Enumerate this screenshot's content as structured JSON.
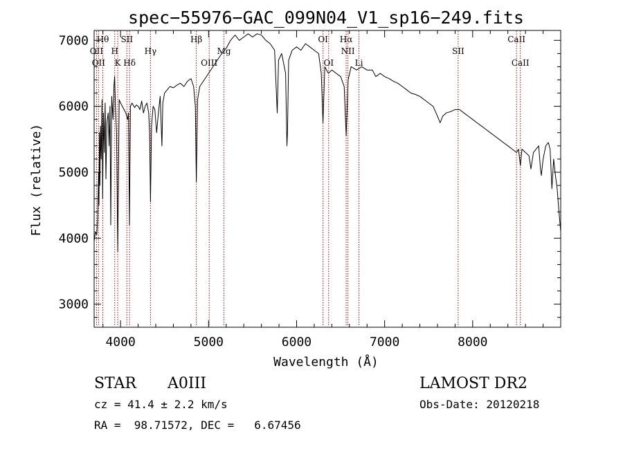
{
  "chart_data": {
    "type": "line",
    "title": "spec−55976−GAC_099N04_V1_sp16−249.fits",
    "xlabel": "Wavelength (Å)",
    "ylabel": "Flux (relative)",
    "xlim": [
      3700,
      9000
    ],
    "ylim": [
      2650,
      7150
    ],
    "xticks": [
      4000,
      5000,
      6000,
      7000,
      8000
    ],
    "yticks": [
      3000,
      4000,
      5000,
      6000,
      7000
    ],
    "grid": false,
    "series": [
      {
        "points": [
          [
            3700,
            3950
          ],
          [
            3715,
            4100
          ],
          [
            3730,
            4050
          ],
          [
            3740,
            4300
          ],
          [
            3750,
            5000
          ],
          [
            3755,
            4500
          ],
          [
            3760,
            5600
          ],
          [
            3765,
            4800
          ],
          [
            3772,
            5700
          ],
          [
            3780,
            5200
          ],
          [
            3790,
            6100
          ],
          [
            3797,
            4600
          ],
          [
            3805,
            5900
          ],
          [
            3815,
            5300
          ],
          [
            3825,
            6050
          ],
          [
            3834,
            4900
          ],
          [
            3845,
            5750
          ],
          [
            3860,
            5900
          ],
          [
            3870,
            5400
          ],
          [
            3880,
            6000
          ],
          [
            3889,
            4200
          ],
          [
            3900,
            6150
          ],
          [
            3915,
            5800
          ],
          [
            3925,
            6300
          ],
          [
            3933,
            6450
          ],
          [
            3942,
            6000
          ],
          [
            3955,
            5600
          ],
          [
            3968,
            3800
          ],
          [
            3985,
            6100
          ],
          [
            4000,
            6050
          ],
          [
            4020,
            6000
          ],
          [
            4040,
            5950
          ],
          [
            4060,
            5900
          ],
          [
            4080,
            5800
          ],
          [
            4090,
            5900
          ],
          [
            4101,
            4200
          ],
          [
            4112,
            6000
          ],
          [
            4130,
            6050
          ],
          [
            4160,
            5980
          ],
          [
            4180,
            6020
          ],
          [
            4200,
            6000
          ],
          [
            4220,
            5950
          ],
          [
            4240,
            6080
          ],
          [
            4260,
            5900
          ],
          [
            4280,
            6000
          ],
          [
            4300,
            6050
          ],
          [
            4320,
            5900
          ],
          [
            4330,
            5600
          ],
          [
            4340,
            4550
          ],
          [
            4352,
            5700
          ],
          [
            4370,
            6000
          ],
          [
            4390,
            5950
          ],
          [
            4410,
            5600
          ],
          [
            4430,
            5900
          ],
          [
            4450,
            6150
          ],
          [
            4470,
            5400
          ],
          [
            4480,
            6050
          ],
          [
            4500,
            6200
          ],
          [
            4530,
            6250
          ],
          [
            4560,
            6300
          ],
          [
            4600,
            6280
          ],
          [
            4640,
            6320
          ],
          [
            4680,
            6350
          ],
          [
            4720,
            6300
          ],
          [
            4760,
            6380
          ],
          [
            4800,
            6420
          ],
          [
            4830,
            6300
          ],
          [
            4850,
            6000
          ],
          [
            4861,
            4850
          ],
          [
            4875,
            6100
          ],
          [
            4900,
            6300
          ],
          [
            4950,
            6400
          ],
          [
            5000,
            6500
          ],
          [
            5050,
            6600
          ],
          [
            5100,
            6700
          ],
          [
            5150,
            6800
          ],
          [
            5200,
            6880
          ],
          [
            5250,
            7000
          ],
          [
            5300,
            7080
          ],
          [
            5350,
            7000
          ],
          [
            5400,
            7050
          ],
          [
            5450,
            7100
          ],
          [
            5500,
            7050
          ],
          [
            5550,
            7100
          ],
          [
            5600,
            7080
          ],
          [
            5650,
            7000
          ],
          [
            5700,
            6950
          ],
          [
            5750,
            6850
          ],
          [
            5780,
            5900
          ],
          [
            5795,
            6700
          ],
          [
            5830,
            6800
          ],
          [
            5875,
            6500
          ],
          [
            5890,
            5400
          ],
          [
            5896,
            5600
          ],
          [
            5910,
            6700
          ],
          [
            5950,
            6850
          ],
          [
            6000,
            6900
          ],
          [
            6050,
            6850
          ],
          [
            6100,
            6950
          ],
          [
            6150,
            6900
          ],
          [
            6200,
            6850
          ],
          [
            6250,
            6800
          ],
          [
            6280,
            6500
          ],
          [
            6300,
            5750
          ],
          [
            6320,
            6600
          ],
          [
            6360,
            6500
          ],
          [
            6400,
            6550
          ],
          [
            6450,
            6500
          ],
          [
            6500,
            6450
          ],
          [
            6540,
            6300
          ],
          [
            6563,
            5550
          ],
          [
            6585,
            6400
          ],
          [
            6620,
            6600
          ],
          [
            6680,
            6550
          ],
          [
            6740,
            6600
          ],
          [
            6800,
            6550
          ],
          [
            6860,
            6550
          ],
          [
            6900,
            6450
          ],
          [
            6950,
            6500
          ],
          [
            7000,
            6450
          ],
          [
            7050,
            6420
          ],
          [
            7100,
            6380
          ],
          [
            7150,
            6350
          ],
          [
            7200,
            6300
          ],
          [
            7250,
            6250
          ],
          [
            7300,
            6200
          ],
          [
            7350,
            6180
          ],
          [
            7400,
            6150
          ],
          [
            7450,
            6100
          ],
          [
            7500,
            6050
          ],
          [
            7550,
            6000
          ],
          [
            7600,
            5850
          ],
          [
            7630,
            5750
          ],
          [
            7660,
            5850
          ],
          [
            7700,
            5900
          ],
          [
            7750,
            5920
          ],
          [
            7800,
            5950
          ],
          [
            7850,
            5950
          ],
          [
            7900,
            5900
          ],
          [
            7950,
            5850
          ],
          [
            8000,
            5800
          ],
          [
            8050,
            5750
          ],
          [
            8100,
            5700
          ],
          [
            8150,
            5650
          ],
          [
            8200,
            5600
          ],
          [
            8250,
            5550
          ],
          [
            8300,
            5500
          ],
          [
            8350,
            5450
          ],
          [
            8400,
            5400
          ],
          [
            8450,
            5350
          ],
          [
            8498,
            5300
          ],
          [
            8520,
            5350
          ],
          [
            8542,
            5100
          ],
          [
            8560,
            5350
          ],
          [
            8600,
            5300
          ],
          [
            8640,
            5250
          ],
          [
            8662,
            5050
          ],
          [
            8690,
            5300
          ],
          [
            8720,
            5350
          ],
          [
            8750,
            5400
          ],
          [
            8770,
            5050
          ],
          [
            8780,
            4950
          ],
          [
            8800,
            5200
          ],
          [
            8830,
            5400
          ],
          [
            8860,
            5450
          ],
          [
            8880,
            5350
          ],
          [
            8900,
            4750
          ],
          [
            8920,
            5200
          ],
          [
            8940,
            4950
          ],
          [
            8960,
            4750
          ],
          [
            8980,
            4400
          ],
          [
            9000,
            4100
          ]
        ]
      }
    ],
    "line_markers": [
      {
        "wavelength": 3727,
        "label": "OII",
        "row": 2
      },
      {
        "wavelength": 3750,
        "label": "OII",
        "row": 3
      },
      {
        "wavelength": 3798,
        "label": "Hθ",
        "row": 1
      },
      {
        "wavelength": 3934,
        "label": "H",
        "row": 2
      },
      {
        "wavelength": 3968,
        "label": "K",
        "row": 3
      },
      {
        "wavelength": 4072,
        "label": "SII",
        "row": 1
      },
      {
        "wavelength": 4102,
        "label": "Hδ",
        "row": 3
      },
      {
        "wavelength": 4340,
        "label": "Hγ",
        "row": 2
      },
      {
        "wavelength": 4861,
        "label": "Hβ",
        "row": 1
      },
      {
        "wavelength": 5007,
        "label": "OIII",
        "row": 3
      },
      {
        "wavelength": 5175,
        "label": "Mg",
        "row": 2
      },
      {
        "wavelength": 6300,
        "label": "OI",
        "row": 1
      },
      {
        "wavelength": 6364,
        "label": "OI",
        "row": 3
      },
      {
        "wavelength": 6563,
        "label": "Hα",
        "row": 1
      },
      {
        "wavelength": 6583,
        "label": "NII",
        "row": 2
      },
      {
        "wavelength": 6708,
        "label": "Li",
        "row": 3
      },
      {
        "wavelength": 7835,
        "label": "SII",
        "row": 2
      },
      {
        "wavelength": 8498,
        "label": "CaII",
        "row": 1
      },
      {
        "wavelength": 8542,
        "label": "CaII",
        "row": 3
      }
    ],
    "colors": {
      "spectrum": "#000000",
      "line_marker": "#b00000",
      "axes": "#000000",
      "background": "#ffffff"
    }
  },
  "info": {
    "object_class": "STAR",
    "subclass": "A0III",
    "survey": "LAMOST DR2",
    "cz": "cz = 41.4 ± 2.2 km/s",
    "obs_date": "Obs-Date: 20120218",
    "coords": "RA =  98.71572, DEC =   6.67456"
  }
}
